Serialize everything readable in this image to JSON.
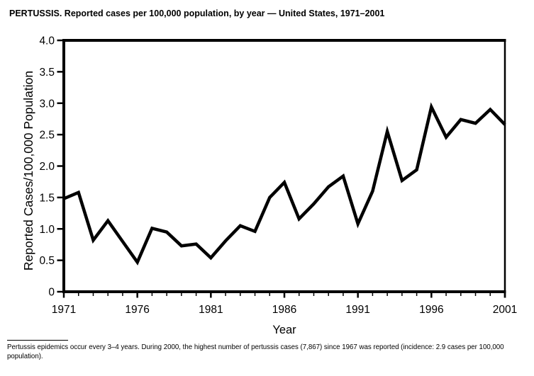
{
  "page": {
    "title": "PERTUSSIS. Reported cases per 100,000 population, by year — United States, 1971–2001",
    "footnote": "Pertussis epidemics occur every 3–4 years. During 2000, the highest number of pertussis cases (7,867) since 1967 was reported (incidence: 2.9 cases per 100,000 population)."
  },
  "chart_data": {
    "type": "line",
    "title": "PERTUSSIS. Reported cases per 100,000 population, by year — United States, 1971–2001",
    "xlabel": "Year",
    "ylabel": "Reported Cases/100,000 Population",
    "series_name": "Reported pertussis cases per 100,000 population",
    "x": [
      1971,
      1972,
      1973,
      1974,
      1975,
      1976,
      1977,
      1978,
      1979,
      1980,
      1981,
      1982,
      1983,
      1984,
      1985,
      1986,
      1987,
      1988,
      1989,
      1990,
      1991,
      1992,
      1993,
      1994,
      1995,
      1996,
      1997,
      1998,
      1999,
      2000,
      2001
    ],
    "values": [
      1.48,
      1.58,
      0.82,
      1.13,
      0.8,
      0.47,
      1.01,
      0.95,
      0.73,
      0.76,
      0.54,
      0.81,
      1.05,
      0.96,
      1.5,
      1.74,
      1.16,
      1.4,
      1.67,
      1.84,
      1.08,
      1.6,
      2.55,
      1.77,
      1.94,
      2.94,
      2.46,
      2.74,
      2.68,
      2.9,
      2.66
    ],
    "xlim": [
      1971,
      2001
    ],
    "ylim": [
      0,
      4.0
    ],
    "xticks": [
      1971,
      1976,
      1981,
      1986,
      1991,
      1996,
      2001
    ],
    "yticks": [
      0,
      0.5,
      1.0,
      1.5,
      2.0,
      2.5,
      3.0,
      3.5,
      4.0
    ],
    "ytick_labels": [
      "0",
      "0.5",
      "1.0",
      "1.5",
      "2.0",
      "2.5",
      "3.0",
      "3.5",
      "4.0"
    ],
    "grid": false,
    "legend": "none",
    "line_color": "#000000",
    "background_color": "#ffffff"
  }
}
